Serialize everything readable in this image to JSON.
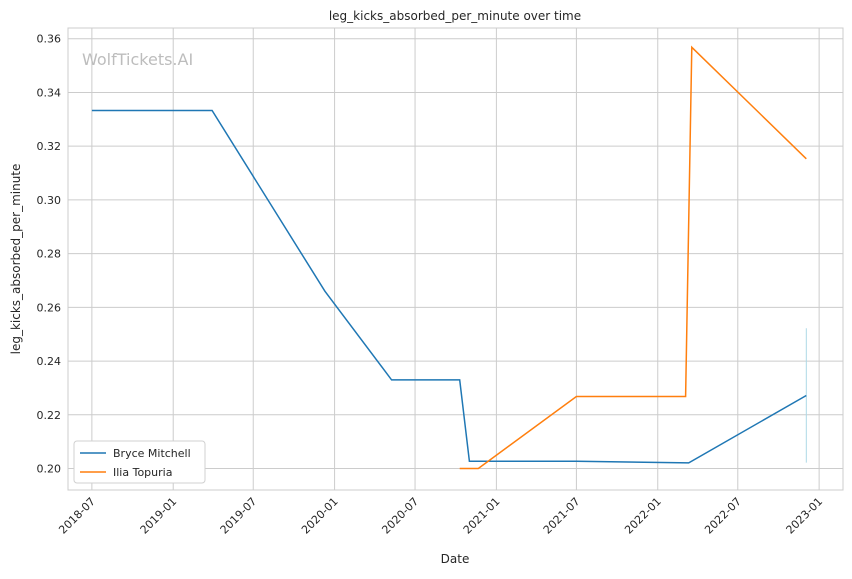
{
  "chart_data": {
    "type": "line",
    "title": "leg_kicks_absorbed_per_minute over time",
    "xlabel": "Date",
    "ylabel": "leg_kicks_absorbed_per_minute",
    "watermark": "WolfTickets.AI",
    "ylim": [
      0.192,
      0.364
    ],
    "xlim": [
      "2018-05-08",
      "2023-02-24"
    ],
    "yticks": [
      0.2,
      0.22,
      0.24,
      0.26,
      0.28,
      0.3,
      0.32,
      0.34,
      0.36
    ],
    "ytick_labels": [
      "0.20",
      "0.22",
      "0.24",
      "0.26",
      "0.28",
      "0.30",
      "0.32",
      "0.34",
      "0.36"
    ],
    "xticks": [
      "2018-07-01",
      "2019-01-01",
      "2019-07-01",
      "2020-01-01",
      "2020-07-01",
      "2021-01-01",
      "2021-07-01",
      "2022-01-01",
      "2022-07-01",
      "2023-01-01"
    ],
    "xtick_labels": [
      "2018-07",
      "2019-01",
      "2019-07",
      "2020-01",
      "2020-07",
      "2021-01",
      "2021-07",
      "2022-01",
      "2022-07",
      "2023-01"
    ],
    "grid": true,
    "legend_position": "lower-left",
    "series": [
      {
        "name": "Bryce Mitchell",
        "color": "#1f77b4",
        "x": [
          "2018-07-01",
          "2019-03-30",
          "2019-12-10",
          "2020-05-09",
          "2020-10-10",
          "2020-11-01",
          "2021-07-01",
          "2022-03-12",
          "2022-12-03"
        ],
        "y": [
          0.3333,
          0.3333,
          0.266,
          0.233,
          0.233,
          0.2027,
          0.2027,
          0.2021,
          0.2272
        ]
      },
      {
        "name": "Ilia Topuria",
        "color": "#ff7f0e",
        "x": [
          "2020-10-10",
          "2020-11-21",
          "2021-07-01",
          "2022-03-05",
          "2022-03-19",
          "2022-12-03"
        ],
        "y": [
          0.2,
          0.2,
          0.2268,
          0.2268,
          0.3568,
          0.3153
        ]
      }
    ],
    "band": {
      "x": "2022-12-03",
      "y_range": [
        0.2022,
        0.2522
      ],
      "color": "#add8e6"
    }
  }
}
